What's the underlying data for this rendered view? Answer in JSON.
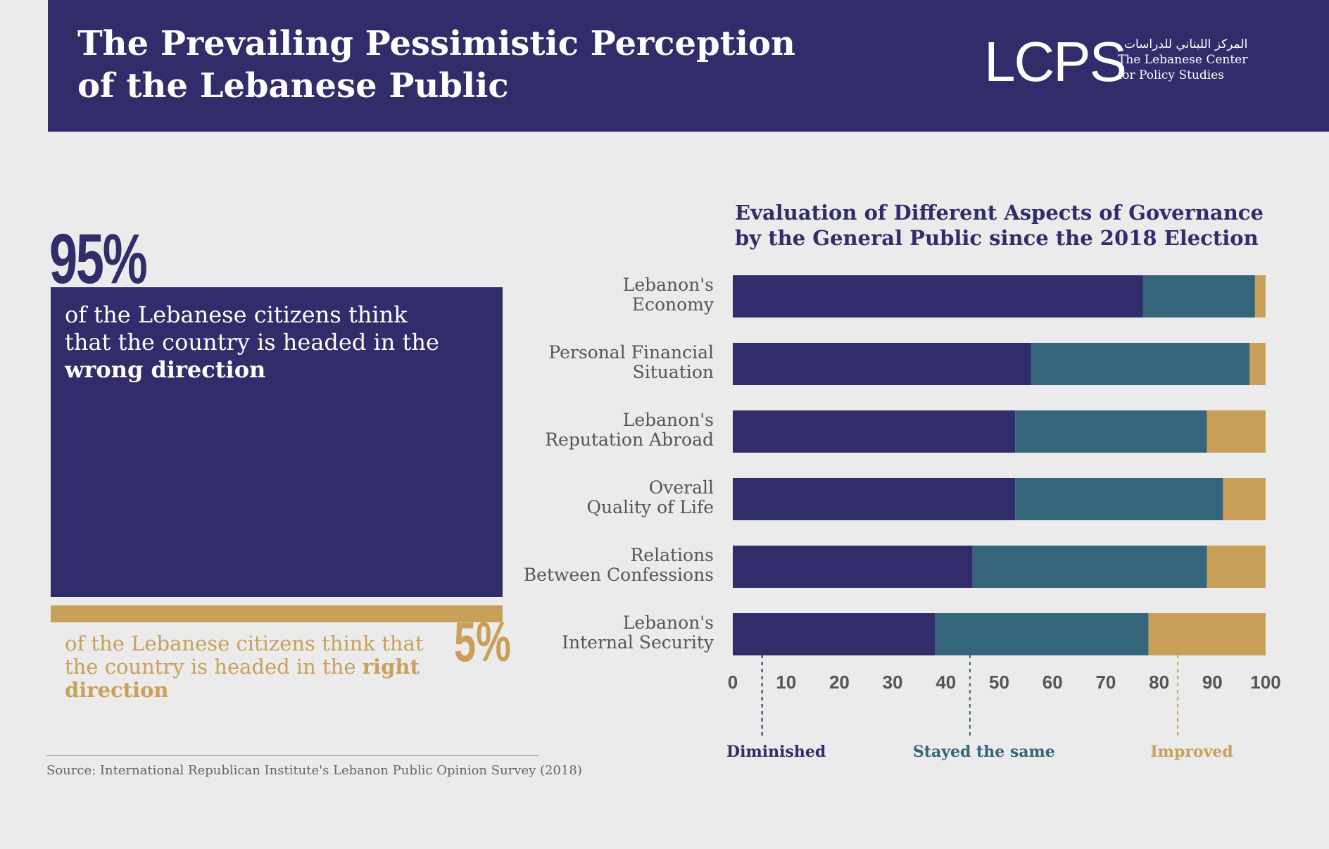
{
  "header": {
    "title_line1": "The Prevailing Pessimistic Perception",
    "title_line2": "of the Lebanese Public",
    "logo": "LCPS",
    "logo_arabic": "المركز اللبناني للدراسات",
    "logo_line1": "The Lebanese Center",
    "logo_line2": "for Policy Studies"
  },
  "left": {
    "wrong_pct": "95%",
    "wrong_text_before": "of the Lebanese citizens think that the country is headed in the ",
    "wrong_text_bold": "wrong direction",
    "right_pct": "5%",
    "right_text_before": "of the Lebanese citizens think that the country is headed in the ",
    "right_text_bold": "right direction",
    "source": "Source: International Republican Institute's Lebanon Public Opinion Survey (2018)"
  },
  "colors": {
    "navy": "#312d6b",
    "teal": "#35657a",
    "gold": "#c9a05a"
  },
  "chart_data": {
    "type": "bar",
    "orientation": "horizontal",
    "stacked": true,
    "title": "Evaluation of Different Aspects of Governance by the General Public since the 2018 Election",
    "categories": [
      [
        "Lebanon's",
        "Economy"
      ],
      [
        "Personal Financial",
        "Situation"
      ],
      [
        "Lebanon's",
        "Reputation Abroad"
      ],
      [
        "Overall",
        "Quality of Life"
      ],
      [
        "Relations",
        "Between Confessions"
      ],
      [
        "Lebanon's",
        "Internal Security"
      ]
    ],
    "series": [
      {
        "name": "Diminished",
        "color": "#312d6b",
        "values": [
          77,
          56,
          53,
          53,
          45,
          38
        ]
      },
      {
        "name": "Stayed the same",
        "color": "#35657a",
        "values": [
          21,
          41,
          36,
          39,
          44,
          40
        ]
      },
      {
        "name": "Improved",
        "color": "#c9a05a",
        "values": [
          2,
          3,
          11,
          8,
          11,
          22
        ]
      }
    ],
    "xticks": [
      0,
      10,
      20,
      30,
      40,
      50,
      60,
      70,
      80,
      90,
      100
    ],
    "xlim": [
      0,
      100
    ],
    "legend_markers": [
      {
        "name": "Diminished",
        "at": 5.5,
        "color": "#312d6b"
      },
      {
        "name": "Stayed the same",
        "at": 44.5,
        "color": "#35657a"
      },
      {
        "name": "Improved",
        "at": 83.5,
        "color": "#c9a05a"
      }
    ],
    "legend_position": "bottom",
    "grid": false
  }
}
